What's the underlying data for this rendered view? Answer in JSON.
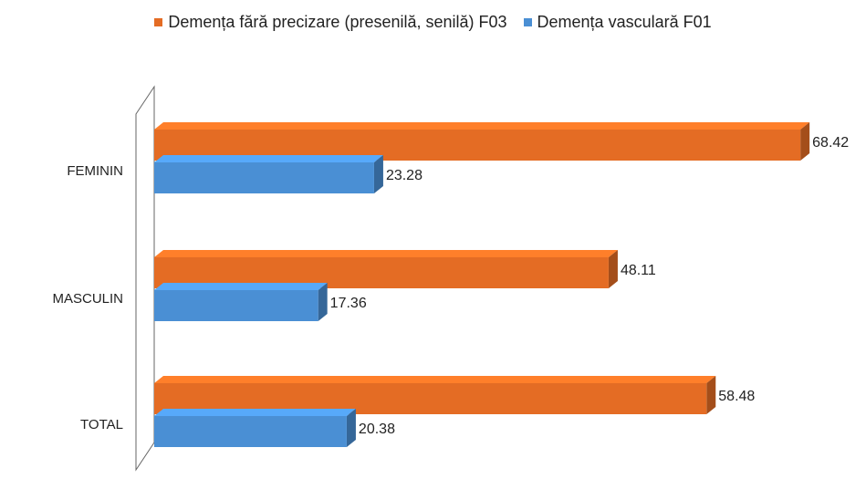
{
  "chart_data": {
    "type": "bar",
    "orientation": "horizontal",
    "categories": [
      "FEMININ",
      "MASCULIN",
      "TOTAL"
    ],
    "series": [
      {
        "name": "Demența fără precizare (presenilă, senilă) F03",
        "values": [
          68.42,
          48.11,
          58.48
        ],
        "color": "#e46c24"
      },
      {
        "name": "Demența vasculară F01",
        "values": [
          23.28,
          17.36,
          20.38
        ],
        "color": "#4a8fd4"
      }
    ],
    "xlim": [
      0,
      70
    ],
    "legend_position": "top",
    "grid": false,
    "data_labels": true
  }
}
